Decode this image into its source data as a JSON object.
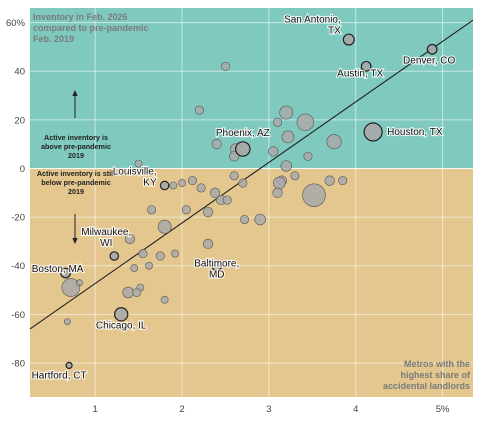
{
  "chart_data": {
    "type": "scatter",
    "title": "",
    "xlabel": "",
    "ylabel": "",
    "xlim": [
      0.25,
      5.35
    ],
    "ylim": [
      -94,
      66
    ],
    "x_ticks": [
      {
        "value": 1,
        "label": "1"
      },
      {
        "value": 2,
        "label": "2"
      },
      {
        "value": 3,
        "label": "3"
      },
      {
        "value": 4,
        "label": "4"
      },
      {
        "value": 5,
        "label": "5%"
      }
    ],
    "y_ticks": [
      {
        "value": 60,
        "label": "60%"
      },
      {
        "value": 40,
        "label": "40"
      },
      {
        "value": 20,
        "label": "20"
      },
      {
        "value": 0,
        "label": "0"
      },
      {
        "value": -20,
        "label": "-20"
      },
      {
        "value": -40,
        "label": "-40"
      },
      {
        "value": -60,
        "label": "-60"
      },
      {
        "value": -80,
        "label": "-80"
      }
    ],
    "grid": true,
    "colors": {
      "above": "#7fc9bf",
      "below": "#e3c78e",
      "point_fill": "#a9a9a9",
      "point_stroke": "#555555",
      "trend": "#222222"
    },
    "trend_line": {
      "x": [
        0.25,
        5.35
      ],
      "y": [
        -66,
        61
      ]
    },
    "y_axis_note": "Inventory in Feb. 2026 compared to pre-pandemic Feb. 2019",
    "x_axis_note": "Metros with the highest share of accidental landlords",
    "above_note": "Active inventory is above pre-pandemic 2019",
    "below_note": "Active inventory is still below pre-pandemic 2019",
    "labeled_points": [
      {
        "name": "San Antonio, TX",
        "x": 3.92,
        "y": 53,
        "size": 4.5
      },
      {
        "name": "Austin, TX",
        "x": 4.12,
        "y": 42,
        "size": 4.0
      },
      {
        "name": "Denver, CO",
        "x": 4.88,
        "y": 49,
        "size": 4.0
      },
      {
        "name": "Houston, TX",
        "x": 4.2,
        "y": 15,
        "size": 7.5
      },
      {
        "name": "Phoenix, AZ",
        "x": 2.7,
        "y": 8,
        "size": 6.0
      },
      {
        "name": "Louisville, KY",
        "x": 1.8,
        "y": -7,
        "size": 3.5
      },
      {
        "name": "Milwaukee, WI",
        "x": 1.22,
        "y": -36,
        "size": 3.5
      },
      {
        "name": "Boston, MA",
        "x": 0.66,
        "y": -43,
        "size": 4.0
      },
      {
        "name": "Baltimore, MD",
        "x": 2.4,
        "y": -40,
        "size": 4.0
      },
      {
        "name": "Chicago, IL",
        "x": 1.3,
        "y": -60,
        "size": 5.5
      },
      {
        "name": "Hartford, CT",
        "x": 0.7,
        "y": -81,
        "size": 2.5
      }
    ],
    "points": [
      {
        "x": 2.5,
        "y": 42,
        "size": 3.5
      },
      {
        "x": 2.2,
        "y": 24,
        "size": 3.5
      },
      {
        "x": 3.2,
        "y": 23,
        "size": 5.5
      },
      {
        "x": 3.1,
        "y": 19,
        "size": 3.5
      },
      {
        "x": 3.42,
        "y": 19,
        "size": 7.0
      },
      {
        "x": 3.22,
        "y": 13,
        "size": 5.0
      },
      {
        "x": 3.75,
        "y": 11,
        "size": 6.0
      },
      {
        "x": 2.62,
        "y": 8,
        "size": 4.5
      },
      {
        "x": 2.6,
        "y": 5,
        "size": 4.0
      },
      {
        "x": 2.4,
        "y": 10,
        "size": 4.0
      },
      {
        "x": 3.05,
        "y": 7,
        "size": 4.0
      },
      {
        "x": 3.45,
        "y": 5,
        "size": 3.5
      },
      {
        "x": 1.5,
        "y": 2,
        "size": 3.0
      },
      {
        "x": 3.2,
        "y": 1,
        "size": 4.5
      },
      {
        "x": 3.3,
        "y": -3,
        "size": 3.5
      },
      {
        "x": 3.7,
        "y": -5,
        "size": 4.0
      },
      {
        "x": 3.15,
        "y": -5,
        "size": 4.0
      },
      {
        "x": 2.6,
        "y": -3,
        "size": 3.5
      },
      {
        "x": 2.7,
        "y": -6,
        "size": 3.5
      },
      {
        "x": 3.12,
        "y": -6,
        "size": 5.0
      },
      {
        "x": 3.52,
        "y": -11,
        "size": 9.5
      },
      {
        "x": 3.85,
        "y": -5,
        "size": 3.5
      },
      {
        "x": 3.1,
        "y": -10,
        "size": 4.0
      },
      {
        "x": 1.9,
        "y": -7,
        "size": 3.0
      },
      {
        "x": 2.0,
        "y": -6,
        "size": 3.0
      },
      {
        "x": 2.12,
        "y": -5,
        "size": 3.5
      },
      {
        "x": 2.22,
        "y": -8,
        "size": 3.5
      },
      {
        "x": 2.38,
        "y": -10,
        "size": 4.0
      },
      {
        "x": 2.45,
        "y": -13,
        "size": 4.0
      },
      {
        "x": 2.52,
        "y": -13,
        "size": 3.5
      },
      {
        "x": 2.3,
        "y": -18,
        "size": 4.0
      },
      {
        "x": 2.05,
        "y": -17,
        "size": 3.5
      },
      {
        "x": 1.65,
        "y": -17,
        "size": 3.5
      },
      {
        "x": 2.9,
        "y": -21,
        "size": 4.5
      },
      {
        "x": 2.72,
        "y": -21,
        "size": 3.5
      },
      {
        "x": 2.3,
        "y": -31,
        "size": 4.0
      },
      {
        "x": 1.8,
        "y": -24,
        "size": 5.5
      },
      {
        "x": 1.4,
        "y": -29,
        "size": 4.0
      },
      {
        "x": 1.55,
        "y": -35,
        "size": 3.5
      },
      {
        "x": 1.75,
        "y": -36,
        "size": 3.5
      },
      {
        "x": 1.92,
        "y": -35,
        "size": 3.0
      },
      {
        "x": 1.62,
        "y": -40,
        "size": 3.0
      },
      {
        "x": 1.45,
        "y": -41,
        "size": 3.0
      },
      {
        "x": 1.52,
        "y": -49,
        "size": 3.0
      },
      {
        "x": 1.38,
        "y": -51,
        "size": 4.5
      },
      {
        "x": 1.48,
        "y": -51,
        "size": 3.5
      },
      {
        "x": 1.8,
        "y": -54,
        "size": 3.0
      },
      {
        "x": 0.72,
        "y": -49,
        "size": 7.5
      },
      {
        "x": 0.68,
        "y": -63,
        "size": 2.5
      },
      {
        "x": 0.82,
        "y": -47,
        "size": 2.5
      }
    ]
  }
}
